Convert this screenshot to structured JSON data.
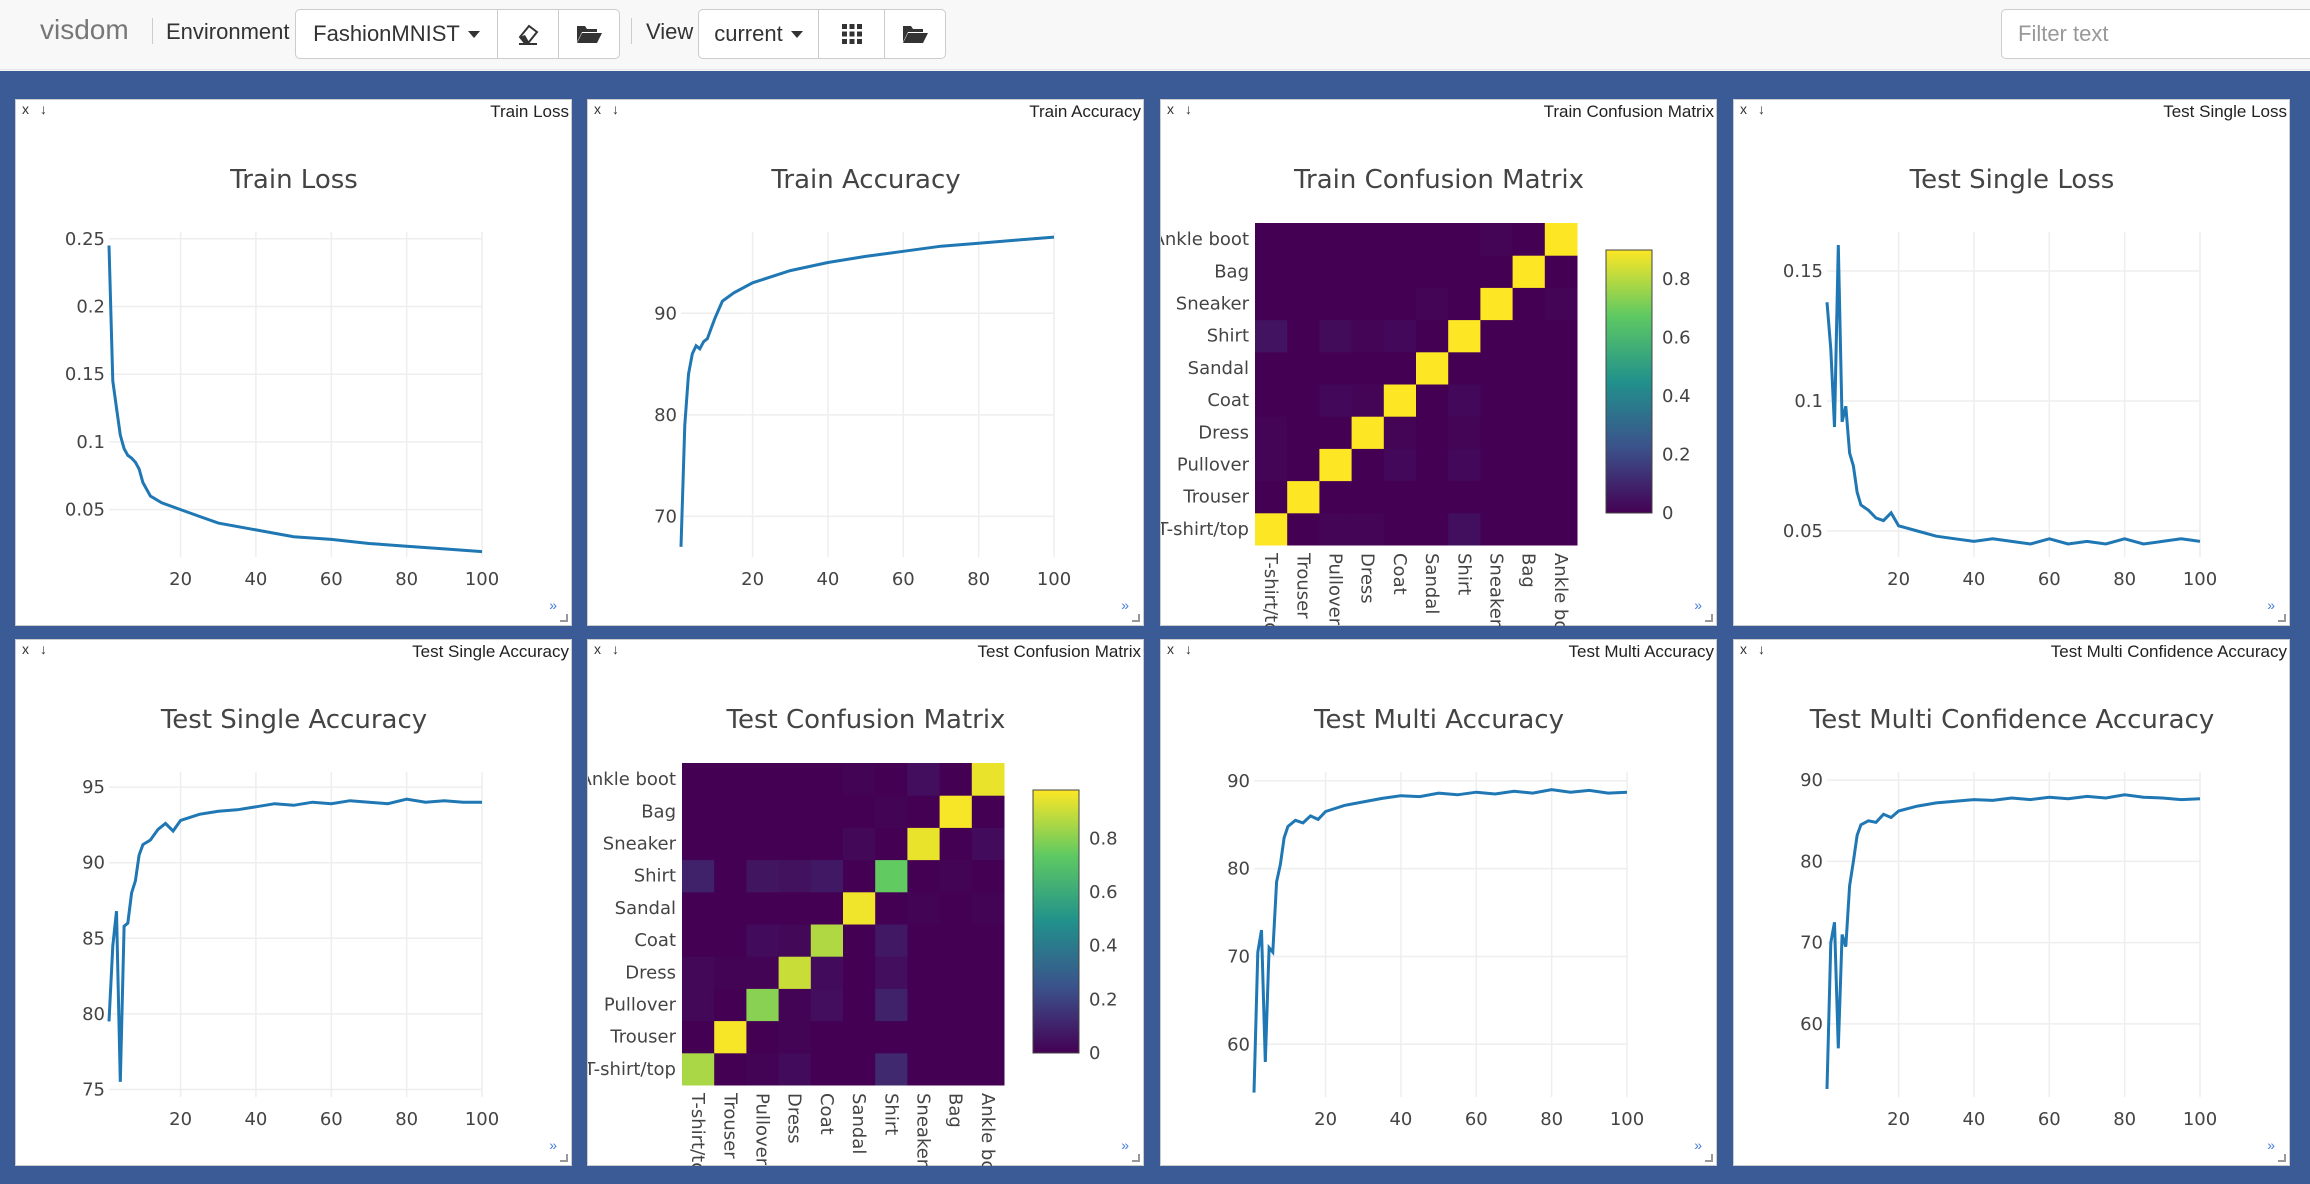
{
  "navbar": {
    "brand": "visdom",
    "environment_label": "Environment",
    "environment_value": "FashionMNIST",
    "view_label": "View",
    "view_value": "current",
    "icons": [
      "eraser-icon",
      "folder-open-icon",
      "grid-icon",
      "folder-open-icon"
    ],
    "filter_placeholder": "Filter text"
  },
  "colors": {
    "background": "#3a5b96",
    "line": "#1f77b4",
    "viridis": [
      "#440154",
      "#3b528b",
      "#21918c",
      "#5ec962",
      "#fde725"
    ]
  },
  "pane_controls": {
    "close": "x",
    "download": "↓",
    "more": "»"
  },
  "chart_data": [
    {
      "type": "line",
      "pane_name": "Train Loss",
      "title": "Train Loss",
      "xlim": [
        1,
        100
      ],
      "ylim": [
        0.015,
        0.255
      ],
      "xticks": [
        20,
        40,
        60,
        80,
        100
      ],
      "yticks": [
        0.05,
        0.1,
        0.15,
        0.2,
        0.25
      ],
      "ytick_labels": [
        "0.05",
        "0.1",
        "0.15",
        "0.2",
        "0.25"
      ],
      "series": [
        {
          "x": [
            1,
            2,
            3,
            4,
            5,
            6,
            7,
            8,
            9,
            10,
            12,
            15,
            20,
            25,
            30,
            40,
            50,
            60,
            70,
            80,
            90,
            100
          ],
          "y": [
            0.245,
            0.145,
            0.125,
            0.105,
            0.095,
            0.09,
            0.088,
            0.085,
            0.08,
            0.07,
            0.06,
            0.055,
            0.05,
            0.045,
            0.04,
            0.035,
            0.03,
            0.028,
            0.025,
            0.023,
            0.021,
            0.019
          ]
        }
      ]
    },
    {
      "type": "line",
      "pane_name": "Train Accuracy",
      "title": "Train Accuracy",
      "xlim": [
        1,
        100
      ],
      "ylim": [
        66,
        98
      ],
      "xticks": [
        20,
        40,
        60,
        80,
        100
      ],
      "yticks": [
        70,
        80,
        90
      ],
      "ytick_labels": [
        "70",
        "80",
        "90"
      ],
      "series": [
        {
          "x": [
            1,
            2,
            3,
            4,
            5,
            6,
            7,
            8,
            9,
            10,
            12,
            15,
            20,
            25,
            30,
            40,
            50,
            60,
            70,
            80,
            90,
            100
          ],
          "y": [
            67,
            79,
            84,
            86,
            86.8,
            86.5,
            87.2,
            87.5,
            88.5,
            89.5,
            91.2,
            92,
            93,
            93.6,
            94.2,
            95,
            95.6,
            96.1,
            96.6,
            96.9,
            97.2,
            97.5
          ]
        }
      ]
    },
    {
      "type": "heatmap",
      "pane_name": "Train Confusion Matrix",
      "title": "Train Confusion Matrix",
      "labels": [
        "T-shirt/top",
        "Trouser",
        "Pullover",
        "Dress",
        "Coat",
        "Sandal",
        "Shirt",
        "Sneaker",
        "Bag",
        "Ankle boot"
      ],
      "colorbar_ticks": [
        0,
        0.2,
        0.4,
        0.6,
        0.8
      ],
      "colorbar_range": [
        0,
        0.9
      ],
      "matrix": [
        [
          0.9,
          0.0,
          0.01,
          0.01,
          0.0,
          0.0,
          0.04,
          0.0,
          0.0,
          0.0
        ],
        [
          0.0,
          0.9,
          0.0,
          0.0,
          0.0,
          0.0,
          0.0,
          0.0,
          0.0,
          0.0
        ],
        [
          0.01,
          0.0,
          0.9,
          0.0,
          0.02,
          0.0,
          0.02,
          0.0,
          0.0,
          0.0
        ],
        [
          0.01,
          0.0,
          0.0,
          0.9,
          0.01,
          0.0,
          0.01,
          0.0,
          0.0,
          0.0
        ],
        [
          0.0,
          0.0,
          0.02,
          0.01,
          0.9,
          0.0,
          0.02,
          0.0,
          0.0,
          0.0
        ],
        [
          0.0,
          0.0,
          0.0,
          0.0,
          0.0,
          0.9,
          0.0,
          0.0,
          0.0,
          0.0
        ],
        [
          0.05,
          0.0,
          0.03,
          0.01,
          0.02,
          0.0,
          0.9,
          0.0,
          0.0,
          0.0
        ],
        [
          0.0,
          0.0,
          0.0,
          0.0,
          0.0,
          0.01,
          0.0,
          0.9,
          0.0,
          0.01
        ],
        [
          0.0,
          0.0,
          0.0,
          0.0,
          0.0,
          0.0,
          0.0,
          0.0,
          0.9,
          0.0
        ],
        [
          0.0,
          0.0,
          0.0,
          0.0,
          0.0,
          0.0,
          0.0,
          0.01,
          0.0,
          0.9
        ]
      ]
    },
    {
      "type": "line",
      "pane_name": "Test Single Loss",
      "title": "Test Single Loss",
      "xlim": [
        1,
        100
      ],
      "ylim": [
        0.04,
        0.165
      ],
      "xticks": [
        20,
        40,
        60,
        80,
        100
      ],
      "yticks": [
        0.05,
        0.1,
        0.15
      ],
      "ytick_labels": [
        "0.05",
        "0.1",
        "0.15"
      ],
      "series": [
        {
          "x": [
            1,
            2,
            3,
            4,
            5,
            6,
            7,
            8,
            9,
            10,
            12,
            14,
            16,
            18,
            20,
            25,
            30,
            35,
            40,
            45,
            50,
            55,
            60,
            65,
            70,
            75,
            80,
            85,
            90,
            95,
            100
          ],
          "y": [
            0.138,
            0.12,
            0.09,
            0.16,
            0.092,
            0.098,
            0.08,
            0.075,
            0.065,
            0.06,
            0.058,
            0.055,
            0.054,
            0.057,
            0.052,
            0.05,
            0.048,
            0.047,
            0.046,
            0.047,
            0.046,
            0.045,
            0.047,
            0.045,
            0.046,
            0.045,
            0.047,
            0.045,
            0.046,
            0.047,
            0.046
          ]
        }
      ]
    },
    {
      "type": "line",
      "pane_name": "Test Single Accuracy",
      "title": "Test Single Accuracy",
      "xlim": [
        1,
        100
      ],
      "ylim": [
        74.5,
        96
      ],
      "xticks": [
        20,
        40,
        60,
        80,
        100
      ],
      "yticks": [
        75,
        80,
        85,
        90,
        95
      ],
      "ytick_labels": [
        "75",
        "80",
        "85",
        "90",
        "95"
      ],
      "series": [
        {
          "x": [
            1,
            2,
            3,
            4,
            5,
            6,
            7,
            8,
            9,
            10,
            12,
            14,
            16,
            18,
            20,
            25,
            30,
            35,
            40,
            45,
            50,
            55,
            60,
            65,
            70,
            75,
            80,
            85,
            90,
            95,
            100
          ],
          "y": [
            79.5,
            84.5,
            86.8,
            75.5,
            85.8,
            86,
            88,
            88.8,
            90.5,
            91.2,
            91.5,
            92.2,
            92.6,
            92.1,
            92.8,
            93.2,
            93.4,
            93.5,
            93.7,
            93.9,
            93.8,
            94,
            93.9,
            94.1,
            94,
            93.9,
            94.2,
            94,
            94.1,
            94,
            94
          ]
        }
      ]
    },
    {
      "type": "heatmap",
      "pane_name": "Test Confusion Matrix",
      "title": "Test Confusion Matrix",
      "labels": [
        "T-shirt/top",
        "Trouser",
        "Pullover",
        "Dress",
        "Coat",
        "Sandal",
        "Shirt",
        "Sneaker",
        "Bag",
        "Ankle boot"
      ],
      "colorbar_ticks": [
        0,
        0.2,
        0.4,
        0.6,
        0.8
      ],
      "colorbar_range": [
        0,
        0.98
      ],
      "matrix": [
        [
          0.85,
          0.0,
          0.01,
          0.03,
          0.0,
          0.0,
          0.12,
          0.0,
          0.0,
          0.0
        ],
        [
          0.0,
          0.97,
          0.0,
          0.01,
          0.0,
          0.0,
          0.0,
          0.0,
          0.0,
          0.0
        ],
        [
          0.02,
          0.0,
          0.8,
          0.01,
          0.04,
          0.0,
          0.1,
          0.0,
          0.0,
          0.0
        ],
        [
          0.02,
          0.01,
          0.01,
          0.9,
          0.03,
          0.0,
          0.04,
          0.0,
          0.0,
          0.0
        ],
        [
          0.0,
          0.0,
          0.03,
          0.02,
          0.86,
          0.0,
          0.07,
          0.0,
          0.0,
          0.0
        ],
        [
          0.0,
          0.0,
          0.0,
          0.0,
          0.0,
          0.96,
          0.0,
          0.01,
          0.0,
          0.01
        ],
        [
          0.1,
          0.0,
          0.06,
          0.05,
          0.07,
          0.0,
          0.74,
          0.0,
          0.01,
          0.0
        ],
        [
          0.0,
          0.0,
          0.0,
          0.0,
          0.0,
          0.02,
          0.0,
          0.95,
          0.0,
          0.03
        ],
        [
          0.0,
          0.0,
          0.0,
          0.0,
          0.0,
          0.0,
          0.01,
          0.0,
          0.97,
          0.0
        ],
        [
          0.0,
          0.0,
          0.0,
          0.0,
          0.0,
          0.01,
          0.0,
          0.04,
          0.0,
          0.95
        ]
      ]
    },
    {
      "type": "line",
      "pane_name": "Test Multi Accuracy",
      "title": "Test Multi Accuracy",
      "xlim": [
        1,
        100
      ],
      "ylim": [
        54,
        91
      ],
      "xticks": [
        20,
        40,
        60,
        80,
        100
      ],
      "yticks": [
        60,
        70,
        80,
        90
      ],
      "ytick_labels": [
        "60",
        "70",
        "80",
        "90"
      ],
      "series": [
        {
          "x": [
            1,
            2,
            3,
            4,
            5,
            6,
            7,
            8,
            9,
            10,
            12,
            14,
            16,
            18,
            20,
            25,
            30,
            35,
            40,
            45,
            50,
            55,
            60,
            65,
            70,
            75,
            80,
            85,
            90,
            95,
            100
          ],
          "y": [
            54.5,
            70.5,
            73,
            58,
            71,
            70.5,
            78.5,
            80.5,
            83.5,
            84.8,
            85.5,
            85.2,
            86,
            85.6,
            86.5,
            87.2,
            87.6,
            88,
            88.3,
            88.2,
            88.6,
            88.4,
            88.7,
            88.5,
            88.8,
            88.6,
            89,
            88.7,
            88.9,
            88.6,
            88.7
          ]
        }
      ]
    },
    {
      "type": "line",
      "pane_name": "Test Multi Confidence Accuracy",
      "title": "Test Multi Confidence Accuracy",
      "xlim": [
        1,
        100
      ],
      "ylim": [
        51,
        91
      ],
      "xticks": [
        20,
        40,
        60,
        80,
        100
      ],
      "yticks": [
        60,
        70,
        80,
        90
      ],
      "ytick_labels": [
        "60",
        "70",
        "80",
        "90"
      ],
      "series": [
        {
          "x": [
            1,
            2,
            3,
            4,
            5,
            6,
            7,
            8,
            9,
            10,
            12,
            14,
            16,
            18,
            20,
            25,
            30,
            35,
            40,
            45,
            50,
            55,
            60,
            65,
            70,
            75,
            80,
            85,
            90,
            95,
            100
          ],
          "y": [
            52,
            70,
            72.5,
            57,
            71,
            69.5,
            77,
            80,
            83.2,
            84.5,
            85,
            84.8,
            85.8,
            85.4,
            86.2,
            86.8,
            87.2,
            87.4,
            87.6,
            87.5,
            87.8,
            87.6,
            87.9,
            87.7,
            88,
            87.8,
            88.2,
            87.9,
            87.8,
            87.6,
            87.7
          ]
        }
      ]
    }
  ]
}
